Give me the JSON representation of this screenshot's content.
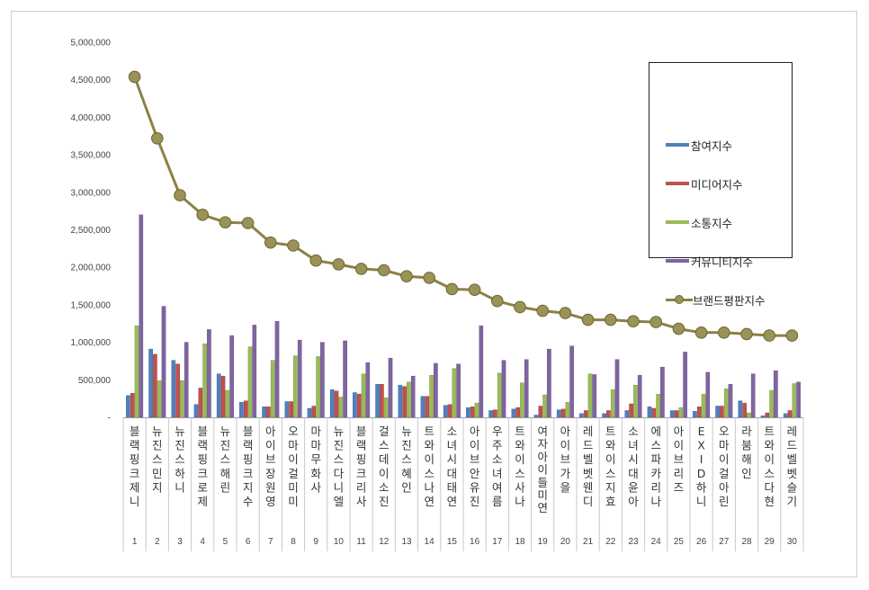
{
  "chart_data": {
    "type": "bar",
    "yticks": [
      "-",
      "500,000",
      "1,000,000",
      "1,500,000",
      "2,000,000",
      "2,500,000",
      "3,000,000",
      "3,500,000",
      "4,000,000",
      "4,500,000",
      "5,000,000"
    ],
    "ylim": [
      0,
      5000000
    ],
    "grid": false,
    "legend_position": "top-right",
    "categories": [
      {
        "rank": "1",
        "label": "블랙핑크제니"
      },
      {
        "rank": "2",
        "label": "뉴진스민지"
      },
      {
        "rank": "3",
        "label": "뉴진스하니"
      },
      {
        "rank": "4",
        "label": "블랙핑크로제"
      },
      {
        "rank": "5",
        "label": "뉴진스해린"
      },
      {
        "rank": "6",
        "label": "블랙핑크지수"
      },
      {
        "rank": "7",
        "label": "아이브장원영"
      },
      {
        "rank": "8",
        "label": "오마이걸미미"
      },
      {
        "rank": "9",
        "label": "마마무화사"
      },
      {
        "rank": "10",
        "label": "뉴진스다니엘"
      },
      {
        "rank": "11",
        "label": "블랙핑크리사"
      },
      {
        "rank": "12",
        "label": "걸스데이소진"
      },
      {
        "rank": "13",
        "label": "뉴진스혜인"
      },
      {
        "rank": "14",
        "label": "트와이스나연"
      },
      {
        "rank": "15",
        "label": "소녀시대태연"
      },
      {
        "rank": "16",
        "label": "아이브안유진"
      },
      {
        "rank": "17",
        "label": "우주소녀여름"
      },
      {
        "rank": "18",
        "label": "트와이스사나"
      },
      {
        "rank": "19",
        "label": "여자아이들미연"
      },
      {
        "rank": "20",
        "label": "아이브가을"
      },
      {
        "rank": "21",
        "label": "레드벨벳웬디"
      },
      {
        "rank": "22",
        "label": "트와이스지효"
      },
      {
        "rank": "23",
        "label": "소녀시대윤아"
      },
      {
        "rank": "24",
        "label": "에스파카리나"
      },
      {
        "rank": "25",
        "label": "아이브리즈"
      },
      {
        "rank": "26",
        "label": "EXID하니"
      },
      {
        "rank": "27",
        "label": "오마이걸아린"
      },
      {
        "rank": "28",
        "label": "라붐해인"
      },
      {
        "rank": "29",
        "label": "트와이스다현"
      },
      {
        "rank": "30",
        "label": "레드벨벳슬기"
      }
    ],
    "series": [
      {
        "name": "참여지수",
        "kind": "bar",
        "color": "#4F81BD",
        "dark": "#2f5f98",
        "values": [
          290000,
          910000,
          760000,
          170000,
          580000,
          200000,
          140000,
          210000,
          120000,
          370000,
          330000,
          440000,
          430000,
          280000,
          160000,
          130000,
          90000,
          110000,
          30000,
          100000,
          50000,
          50000,
          90000,
          140000,
          90000,
          80000,
          150000,
          220000,
          20000,
          50000
        ]
      },
      {
        "name": "미디어지수",
        "kind": "bar",
        "color": "#C0504D",
        "dark": "#963634",
        "values": [
          320000,
          840000,
          710000,
          390000,
          550000,
          220000,
          140000,
          210000,
          150000,
          350000,
          310000,
          440000,
          410000,
          280000,
          170000,
          140000,
          100000,
          130000,
          150000,
          110000,
          90000,
          90000,
          180000,
          120000,
          90000,
          140000,
          150000,
          190000,
          60000,
          90000
        ]
      },
      {
        "name": "소통지수",
        "kind": "bar",
        "color": "#9BBB59",
        "dark": "#76923c",
        "values": [
          1220000,
          490000,
          490000,
          980000,
          360000,
          940000,
          760000,
          820000,
          810000,
          270000,
          580000,
          260000,
          470000,
          560000,
          650000,
          190000,
          590000,
          460000,
          300000,
          200000,
          580000,
          370000,
          430000,
          310000,
          130000,
          310000,
          380000,
          60000,
          360000,
          450000
        ]
      },
      {
        "name": "커뮤니티지수",
        "kind": "bar",
        "color": "#8064A2",
        "dark": "#5f497a",
        "values": [
          2700000,
          1480000,
          1000000,
          1170000,
          1090000,
          1230000,
          1280000,
          1030000,
          1000000,
          1020000,
          730000,
          790000,
          550000,
          720000,
          710000,
          1220000,
          760000,
          770000,
          910000,
          950000,
          570000,
          770000,
          560000,
          670000,
          870000,
          600000,
          440000,
          580000,
          620000,
          470000
        ]
      },
      {
        "name": "브랜드평판지수",
        "kind": "line",
        "color": "#8B8146",
        "marker": "#9B9258",
        "values": [
          4540000,
          3720000,
          2960000,
          2700000,
          2600000,
          2590000,
          2330000,
          2290000,
          2090000,
          2040000,
          1980000,
          1960000,
          1880000,
          1860000,
          1710000,
          1700000,
          1550000,
          1470000,
          1420000,
          1390000,
          1300000,
          1300000,
          1280000,
          1270000,
          1180000,
          1130000,
          1130000,
          1110000,
          1090000,
          1090000
        ]
      }
    ]
  }
}
